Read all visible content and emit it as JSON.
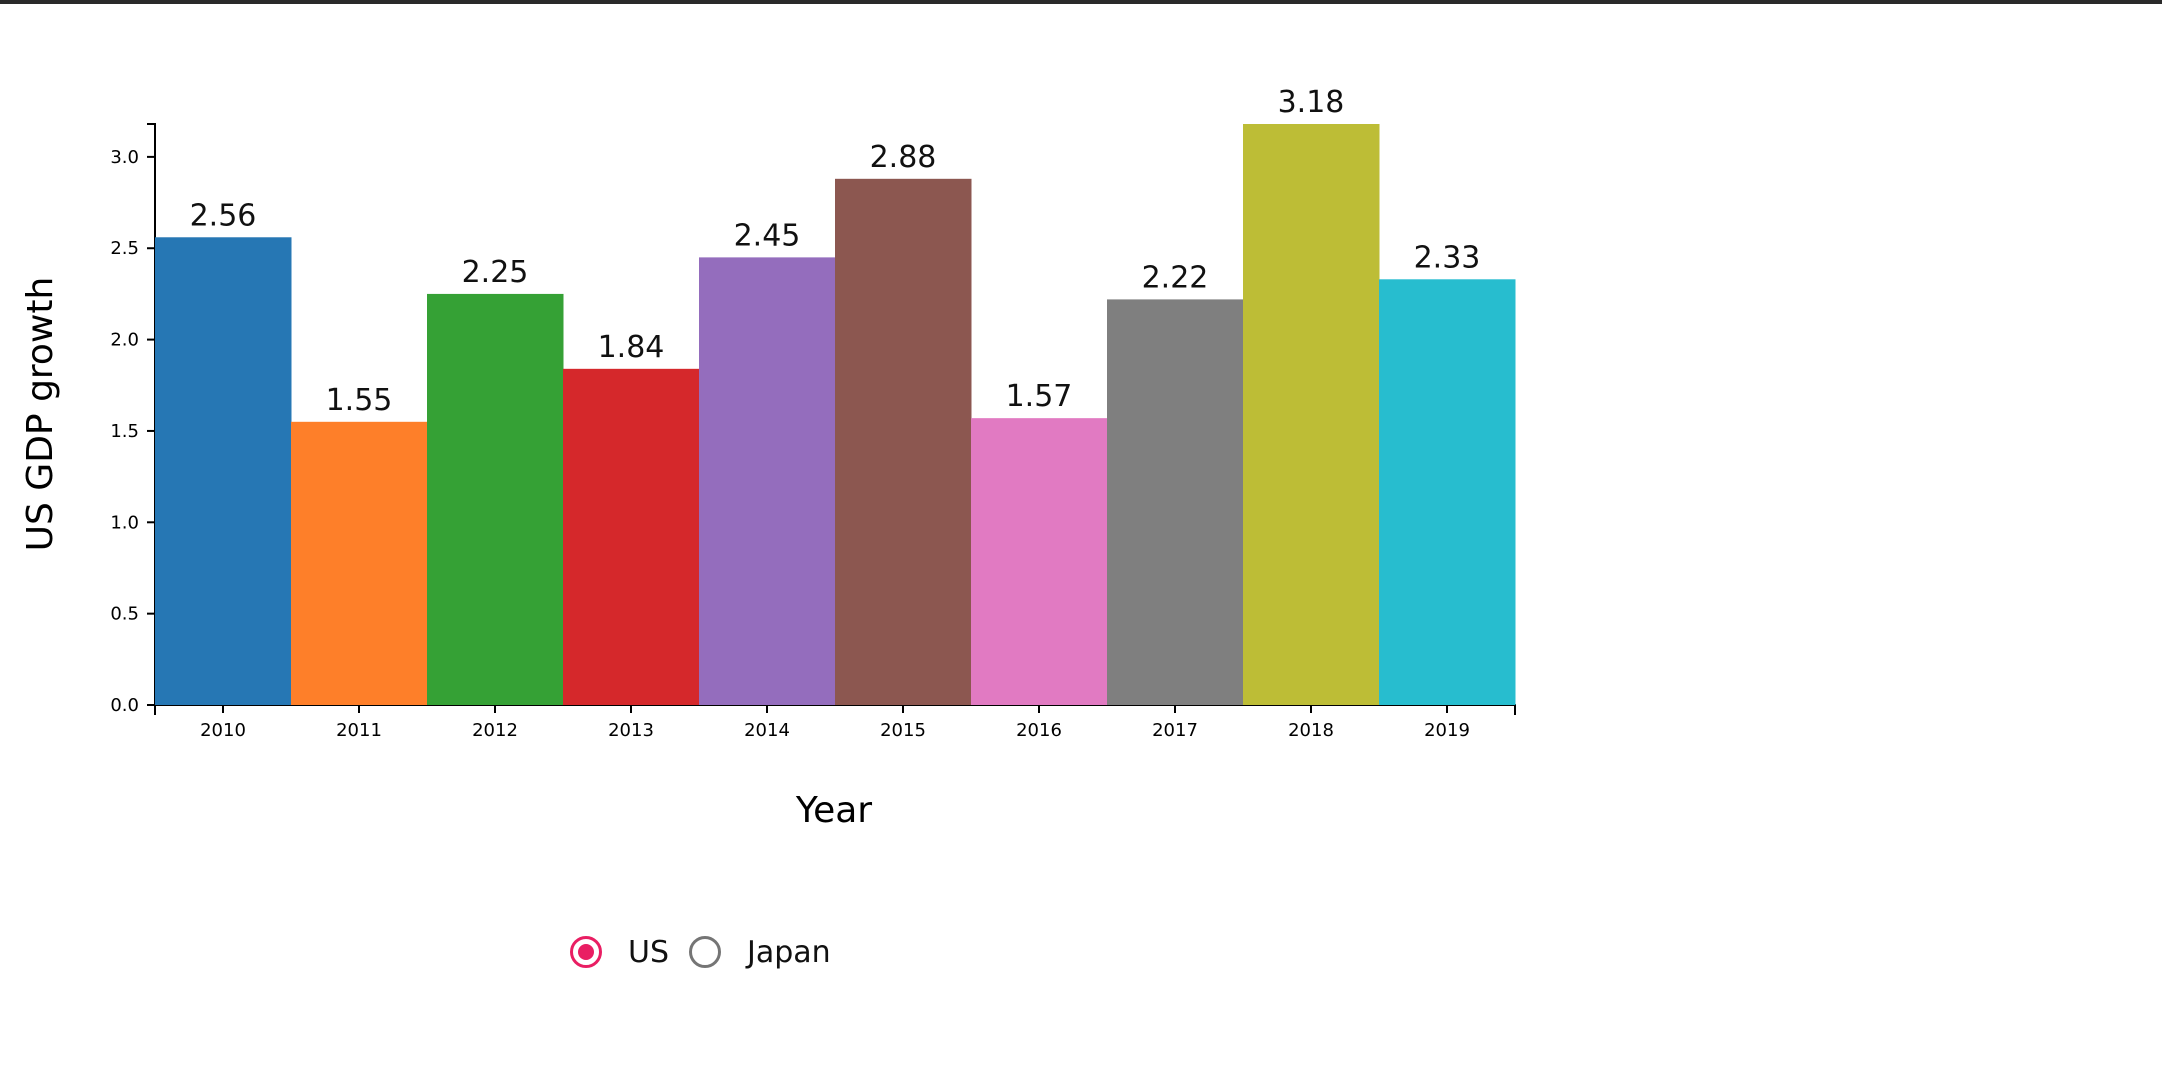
{
  "chart_data": {
    "type": "bar",
    "categories": [
      "2010",
      "2011",
      "2012",
      "2013",
      "2014",
      "2015",
      "2016",
      "2017",
      "2018",
      "2019"
    ],
    "values": [
      2.56,
      1.55,
      2.25,
      1.84,
      2.45,
      2.88,
      1.57,
      2.22,
      3.18,
      2.33
    ],
    "data_labels": [
      "2.56",
      "1.55",
      "2.25",
      "1.84",
      "2.45",
      "2.88",
      "1.57",
      "2.22",
      "3.18",
      "2.33"
    ],
    "colors": [
      "#2677b4",
      "#fe7f29",
      "#35a135",
      "#d5282b",
      "#946dbd",
      "#8c5750",
      "#e17ac2",
      "#7f7f7f",
      "#bdbd36",
      "#27bdcf"
    ],
    "xlabel": "Year",
    "ylabel": "US GDP growth",
    "ylim": [
      0,
      3.18
    ],
    "yticks": [
      0.0,
      0.5,
      1.0,
      1.5,
      2.0,
      2.5,
      3.0
    ],
    "ytick_labels": [
      "0.0",
      "0.5",
      "1.0",
      "1.5",
      "2.0",
      "2.5",
      "3.0"
    ],
    "grid": false
  },
  "legend": {
    "options": [
      {
        "label": "US",
        "checked": true
      },
      {
        "label": "Japan",
        "checked": false
      }
    ],
    "accent_color": "#e91e63"
  }
}
